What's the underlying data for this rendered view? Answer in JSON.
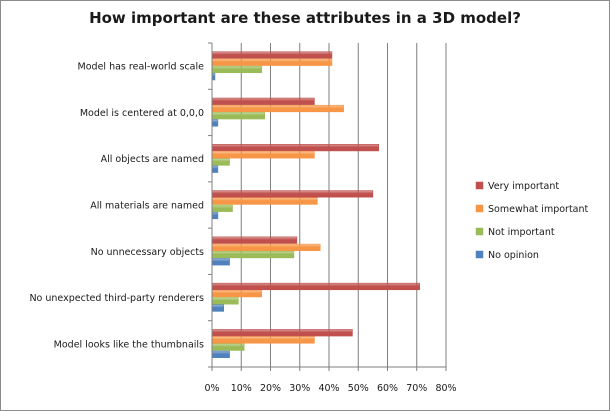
{
  "chart_data": {
    "type": "bar",
    "orientation": "horizontal",
    "title": "How important are these attributes in a 3D model?",
    "categories": [
      "Model has real-world scale",
      "Model is centered at 0,0,0",
      "All objects are named",
      "All materials are named",
      "No unnecessary objects",
      "No unexpected third-party renderers",
      "Model looks like the thumbnails"
    ],
    "series": [
      {
        "name": "Very important",
        "color": "#c0504d",
        "values": [
          41,
          35,
          57,
          55,
          29,
          71,
          48
        ]
      },
      {
        "name": "Somewhat important",
        "color": "#f79646",
        "values": [
          41,
          45,
          35,
          36,
          37,
          17,
          35
        ]
      },
      {
        "name": "Not important",
        "color": "#9bbb59",
        "values": [
          17,
          18,
          6,
          7,
          28,
          9,
          11
        ]
      },
      {
        "name": "No opinion",
        "color": "#4f81bd",
        "values": [
          1,
          2,
          2,
          2,
          6,
          4,
          6
        ]
      }
    ],
    "xlim": [
      0,
      80
    ],
    "xticks": [
      "0%",
      "10%",
      "20%",
      "30%",
      "40%",
      "50%",
      "60%",
      "70%",
      "80%"
    ],
    "grid": true,
    "legend_position": "right"
  }
}
